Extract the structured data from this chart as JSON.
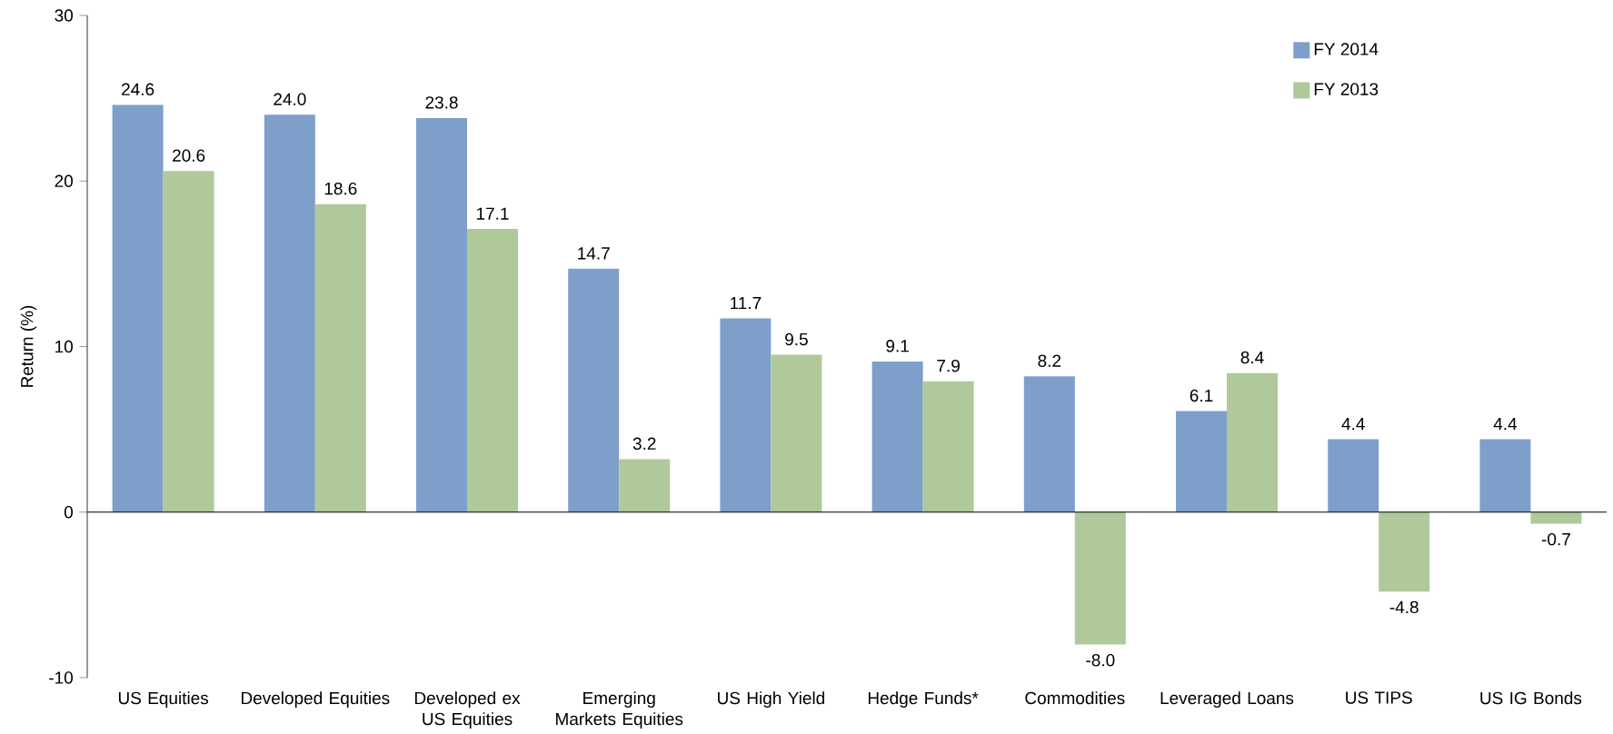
{
  "chart_data": {
    "type": "bar",
    "ylabel": "Return (%)",
    "categories": [
      "US Equities",
      "Developed Equities",
      "Developed ex US Equities",
      "Emerging Markets Equities",
      "US High Yield",
      "Hedge Funds*",
      "Commodities",
      "Leveraged Loans",
      "US TIPS",
      "US IG Bonds"
    ],
    "series": [
      {
        "name": "FY 2014",
        "color": "#7f9fcb",
        "values": [
          24.6,
          24.0,
          23.8,
          14.7,
          11.7,
          9.1,
          8.2,
          6.1,
          4.4,
          4.4
        ],
        "value_labels": [
          "24.6",
          "24.0",
          "23.8",
          "14.7",
          "11.7",
          "9.1",
          "8.2",
          "6.1",
          "4.4",
          "4.4"
        ]
      },
      {
        "name": "FY 2013",
        "color": "#b0c99b",
        "values": [
          20.6,
          18.6,
          17.1,
          3.2,
          9.5,
          7.9,
          -8.0,
          8.4,
          -4.8,
          -0.7
        ],
        "value_labels": [
          "20.6",
          "18.6",
          "17.1",
          "3.2",
          "9.5",
          "7.9",
          "-8.0",
          "8.4",
          "-4.8",
          "-0.7"
        ]
      }
    ],
    "ylim": [
      -10,
      30
    ],
    "yticks": [
      -10,
      0,
      10,
      20,
      30
    ],
    "legend": "top right"
  }
}
